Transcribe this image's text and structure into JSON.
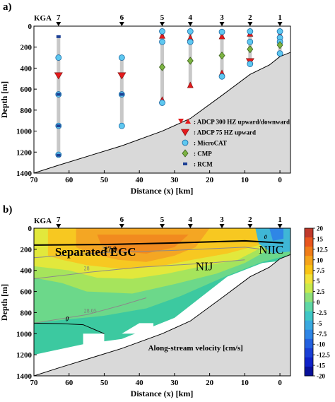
{
  "chart_data": [
    {
      "type": "scatter",
      "panel_label": "a)",
      "title": "",
      "xlabel": "Distance (x) [km]",
      "ylabel": "Depth [m]",
      "xlim": [
        70,
        -3
      ],
      "ylim": [
        1400,
        0
      ],
      "xticks": [
        70,
        60,
        50,
        40,
        30,
        20,
        10,
        0
      ],
      "yticks": [
        0,
        200,
        400,
        600,
        800,
        1000,
        1200,
        1400
      ],
      "grid": false,
      "section_label": "KGA",
      "stations": [
        {
          "name": "7",
          "x": 63
        },
        {
          "name": "6",
          "x": 45
        },
        {
          "name": "5",
          "x": 33.5
        },
        {
          "name": "4",
          "x": 25.5
        },
        {
          "name": "3",
          "x": 16.5
        },
        {
          "name": "2",
          "x": 8.5
        },
        {
          "name": "1",
          "x": 0
        }
      ],
      "seafloor": [
        [
          70,
          1400
        ],
        [
          63,
          1325
        ],
        [
          45,
          1140
        ],
        [
          33.5,
          1000
        ],
        [
          25.5,
          880
        ],
        [
          16.5,
          660
        ],
        [
          8.5,
          460
        ],
        [
          3,
          370
        ],
        [
          0,
          290
        ],
        [
          -3,
          250
        ]
      ],
      "moorings": [
        {
          "station": "7",
          "x": 63,
          "top": 100,
          "bottom": 1230
        },
        {
          "station": "6",
          "x": 45,
          "top": 300,
          "bottom": 950
        },
        {
          "station": "5",
          "x": 33.5,
          "top": 50,
          "bottom": 720
        },
        {
          "station": "4",
          "x": 25.5,
          "top": 50,
          "bottom": 590
        },
        {
          "station": "3",
          "x": 16.5,
          "top": 55,
          "bottom": 480
        },
        {
          "station": "2",
          "x": 8.5,
          "top": 50,
          "bottom": 350
        },
        {
          "station": "1",
          "x": 0,
          "top": 50,
          "bottom": 240
        }
      ],
      "series": [
        {
          "name": ": ADCP 300 HZ upward/downward",
          "marker": "bowtie",
          "color": "#e31a1c",
          "points": [
            [
              33.5,
              90
            ],
            [
              25.5,
              110
            ],
            [
              16.5,
              95
            ],
            [
              8.5,
              70
            ],
            [
              0,
              80
            ],
            [
              33.5,
              700
            ],
            [
              25.5,
              560
            ],
            [
              16.5,
              445
            ]
          ]
        },
        {
          "name": ": ADCP 75 HZ upward",
          "marker": "triangle-down",
          "color": "#e31a1c",
          "points": [
            [
              63,
              470
            ],
            [
              45,
              470
            ],
            [
              8.5,
              335
            ]
          ]
        },
        {
          "name": ": MicroCAT",
          "marker": "circle",
          "color": "#5ec8f0",
          "points": [
            [
              63,
              300
            ],
            [
              63,
              650
            ],
            [
              63,
              950
            ],
            [
              63,
              1225
            ],
            [
              45,
              300
            ],
            [
              45,
              650
            ],
            [
              45,
              950
            ],
            [
              33.5,
              50
            ],
            [
              33.5,
              150
            ],
            [
              33.5,
              730
            ],
            [
              25.5,
              50
            ],
            [
              25.5,
              150
            ],
            [
              16.5,
              55
            ],
            [
              16.5,
              480
            ],
            [
              8.5,
              50
            ],
            [
              8.5,
              150
            ],
            [
              8.5,
              360
            ],
            [
              0,
              50
            ],
            [
              0,
              110
            ],
            [
              0,
              150
            ],
            [
              0,
              260
            ]
          ]
        },
        {
          "name": ": CMP",
          "marker": "diamond",
          "color": "#7cb342",
          "points": [
            [
              33.5,
              390
            ],
            [
              25.5,
              330
            ],
            [
              16.5,
              280
            ],
            [
              8.5,
              220
            ],
            [
              0,
              180
            ]
          ]
        },
        {
          "name": ": RCM",
          "marker": "square",
          "color": "#1c3f94",
          "points": [
            [
              63,
              100
            ],
            [
              63,
              650
            ],
            [
              63,
              950
            ],
            [
              63,
              1230
            ],
            [
              45,
              650
            ]
          ]
        }
      ]
    },
    {
      "type": "heatmap",
      "panel_label": "b)",
      "title": "",
      "xlabel": "Distance (x) [km]",
      "ylabel": "Depth [m]",
      "xlim": [
        70,
        -3
      ],
      "ylim": [
        1400,
        0
      ],
      "xticks": [
        70,
        60,
        50,
        40,
        30,
        20,
        10,
        0
      ],
      "yticks": [
        0,
        200,
        400,
        600,
        800,
        1000,
        1200,
        1400
      ],
      "section_label": "KGA",
      "stations": [
        {
          "name": "7",
          "x": 63
        },
        {
          "name": "6",
          "x": 45
        },
        {
          "name": "5",
          "x": 33.5
        },
        {
          "name": "4",
          "x": 25.5
        },
        {
          "name": "3",
          "x": 16.5
        },
        {
          "name": "2",
          "x": 8.5
        },
        {
          "name": "1",
          "x": 0
        }
      ],
      "colorbar": {
        "label": "",
        "min": -20,
        "max": 20,
        "ticks": [
          "20",
          "15",
          "12.5",
          "10",
          "7.5",
          "5",
          "2.5",
          "0",
          "-2.5",
          "-5",
          "-7.5",
          "-10",
          "-12.5",
          "-15",
          "-20"
        ],
        "colors": [
          "#c0392b",
          "#e8561e",
          "#f07d18",
          "#f5a41a",
          "#f9c414",
          "#f2e33a",
          "#c9ea4c",
          "#8fe07a",
          "#5fd7a6",
          "#3fc7c7",
          "#3aa9e0",
          "#2f86e6",
          "#2361e0",
          "#1a3fd6",
          "#0f22c9",
          "#08109a"
        ]
      },
      "isopycnals": [
        {
          "label": "27.8",
          "depth_km": [
            [
              70,
              160
            ],
            [
              50,
              155
            ],
            [
              30,
              140
            ],
            [
              10,
              120
            ],
            [
              -1,
              140
            ]
          ]
        },
        {
          "label": "27.9",
          "depth_km": [
            [
              70,
              280
            ],
            [
              50,
              230
            ],
            [
              30,
              210
            ],
            [
              10,
              180
            ],
            [
              5,
              200
            ]
          ]
        },
        {
          "label": "28",
          "depth_km": [
            [
              70,
              480
            ],
            [
              55,
              420
            ],
            [
              40,
              370
            ],
            [
              20,
              330
            ],
            [
              10,
              300
            ]
          ]
        },
        {
          "label": "28.05",
          "depth_km": [
            [
              70,
              900
            ],
            [
              55,
              820
            ],
            [
              45,
              730
            ],
            [
              38,
              660
            ]
          ]
        }
      ],
      "contour_zero_labels": [
        "0",
        "0"
      ],
      "annotations": [
        "Separated EGC",
        "NIJ",
        "NIIC",
        "Along-stream velocity [cm/s]"
      ]
    }
  ]
}
